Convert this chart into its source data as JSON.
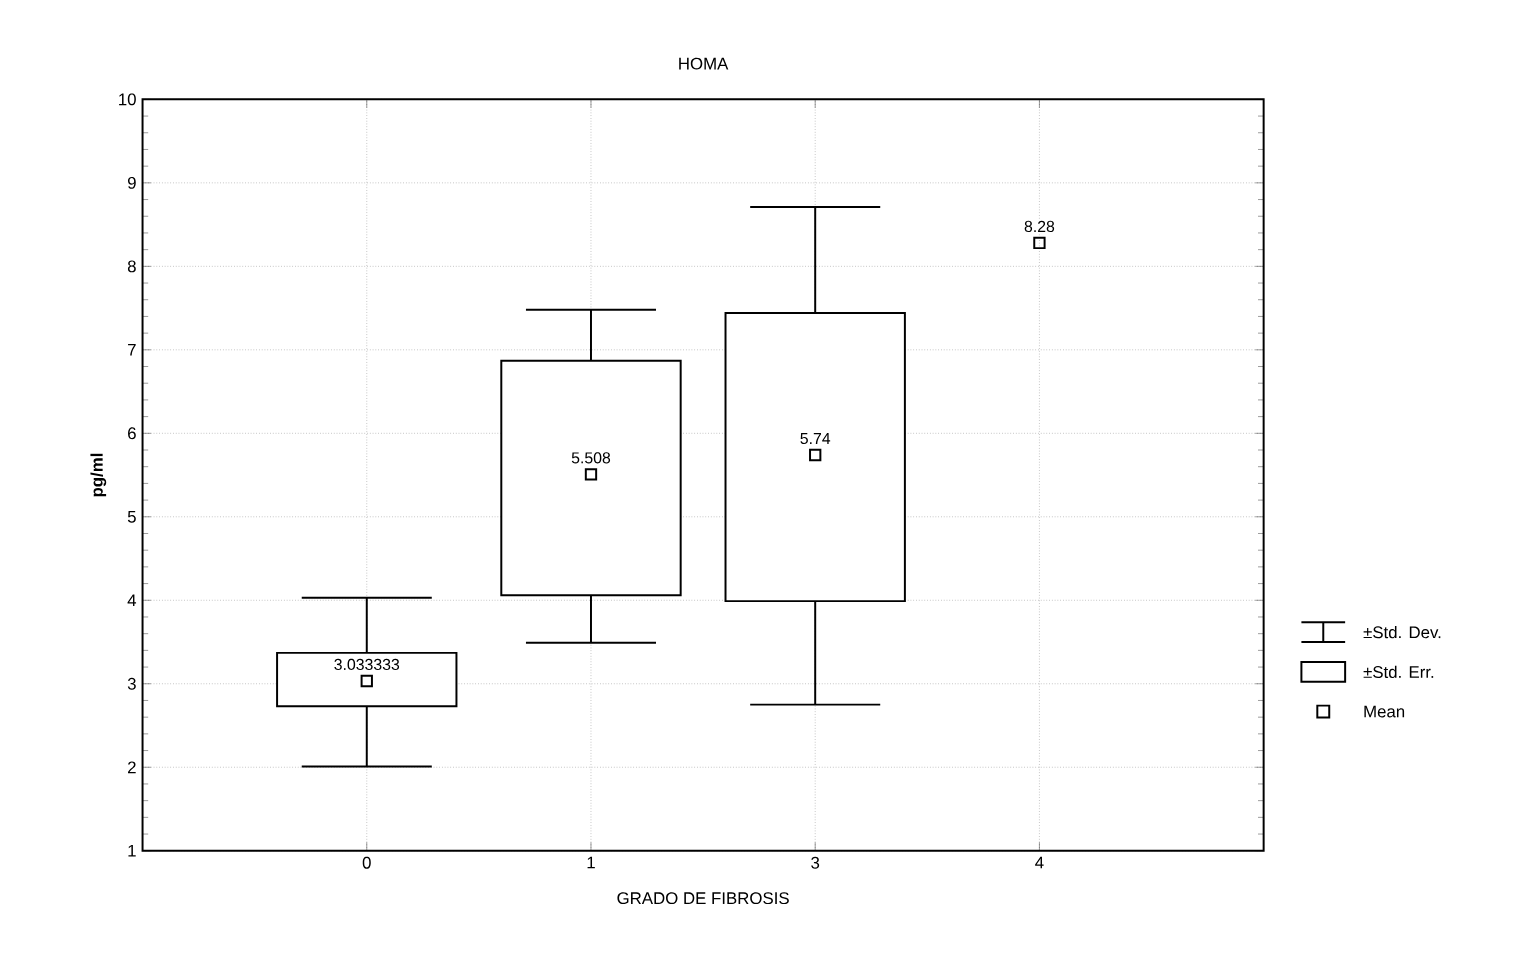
{
  "chart_data": {
    "type": "box",
    "title": "HOMA",
    "xlabel": "GRADO DE FIBROSIS",
    "ylabel": "pg/ml",
    "categories": [
      "0",
      "1",
      "3",
      "4"
    ],
    "ylim": [
      1,
      10
    ],
    "yticks": [
      1,
      2,
      3,
      4,
      5,
      6,
      7,
      8,
      9,
      10
    ],
    "grid": true,
    "legend": "right",
    "annotations": [
      "±Std. Dev."
    ],
    "series": [
      {
        "name": "±Std. Err.",
        "color": "#000000",
        "boxes": [
          {
            "low": 2.01,
            "q1": 2.73,
            "q3": 3.37,
            "high": 4.03
          },
          {
            "low": 3.49,
            "q1": 4.06,
            "q3": 6.87,
            "high": 7.48
          },
          {
            "low": 2.75,
            "q1": 3.99,
            "q3": 7.44,
            "high": 8.71
          },
          null
        ]
      },
      {
        "name": "Mean",
        "type": "scatter",
        "color": "#000000",
        "marker": "square",
        "x": [
          "0",
          "1",
          "3",
          "4"
        ],
        "values": [
          3.033333,
          5.508,
          5.74,
          8.28
        ],
        "value_labels": [
          "3.033333",
          "5.508",
          "5.74",
          "8.28"
        ]
      }
    ]
  }
}
